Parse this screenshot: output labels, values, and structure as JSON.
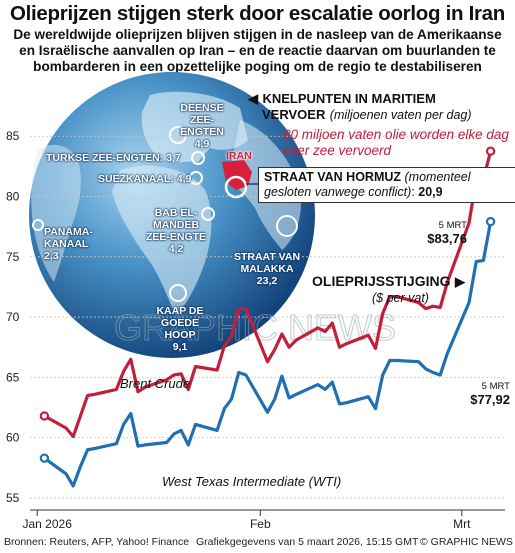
{
  "header": {
    "title": "Olieprijzen stijgen sterk door escalatie oorlog in Iran",
    "subtitle": "De wereldwijde olieprijzen blijven stijgen in de nasleep van de Amerikaanse en Israëlische aanvallen op Iran – en de reactie daarvan om buurlanden te bombarderen in een opzettelijke poging om de regio te destabiliseren"
  },
  "chokepoints": {
    "title": "KNELPUNTEN IN MARITIEM",
    "title2": "VERVOER",
    "unit": "(miljoenen vaten per dag)",
    "note": "80 miljoen vaten olie worden elke dag over zee vervoerd",
    "iran_label": "IRAN",
    "hormuz": {
      "name": "STRAAT VAN HORMUZ",
      "note": "(momenteel gesloten vanwege conflict)",
      "value": "20,9"
    },
    "points": [
      {
        "name": "DEENSE ZEE-ENGTEN",
        "value": "4,9"
      },
      {
        "name": "TURKSE ZEE-ENGTEN",
        "value": "3,7"
      },
      {
        "name": "SUEZKANAAL",
        "value": "4,9"
      },
      {
        "name": "BAB EL-MANDEB ZEE-ENGTE",
        "value": "4,2"
      },
      {
        "name": "PANAMA-KANAAL",
        "value": "2,3"
      },
      {
        "name": "STRAAT VAN MALAKKA",
        "value": "23,2"
      },
      {
        "name": "KAAP DE GOEDE HOOP",
        "value": "9,1"
      }
    ]
  },
  "chart_data": {
    "type": "line",
    "title": "OLIEPRIJSSTIJGING",
    "ylabel": "($ per vat)",
    "xlabel": "",
    "ylim": [
      54,
      89
    ],
    "yticks": [
      55,
      60,
      65,
      70,
      75,
      80,
      85
    ],
    "x_ticks": [
      {
        "label": "Jan 2026",
        "x": "2026-01-01"
      },
      {
        "label": "Feb",
        "x": "2026-02-01"
      },
      {
        "label": "Mrt",
        "x": "2026-03-01"
      }
    ],
    "x_range": [
      "2025-12-31",
      "2026-03-07"
    ],
    "series": [
      {
        "name": "Brent Crude",
        "color": "#c21f3a",
        "end_date_label": "5 MRT",
        "end_value_label": "$83,76",
        "points": [
          [
            "2026-01-02",
            61.8
          ],
          [
            "2026-01-05",
            60.8
          ],
          [
            "2026-01-06",
            60.1
          ],
          [
            "2026-01-07",
            61.8
          ],
          [
            "2026-01-08",
            63.5
          ],
          [
            "2026-01-09",
            63.6
          ],
          [
            "2026-01-12",
            64.0
          ],
          [
            "2026-01-13",
            65.5
          ],
          [
            "2026-01-14",
            66.5
          ],
          [
            "2026-01-15",
            63.8
          ],
          [
            "2026-01-16",
            64.2
          ],
          [
            "2026-01-19",
            64.8
          ],
          [
            "2026-01-20",
            65.2
          ],
          [
            "2026-01-21",
            65.3
          ],
          [
            "2026-01-22",
            64.0
          ],
          [
            "2026-01-23",
            65.9
          ],
          [
            "2026-01-26",
            65.6
          ],
          [
            "2026-01-27",
            67.6
          ],
          [
            "2026-01-28",
            68.4
          ],
          [
            "2026-01-29",
            70.7
          ],
          [
            "2026-01-30",
            70.7
          ],
          [
            "2026-02-02",
            66.3
          ],
          [
            "2026-02-03",
            67.3
          ],
          [
            "2026-02-04",
            68.6
          ],
          [
            "2026-02-05",
            67.5
          ],
          [
            "2026-02-06",
            68.1
          ],
          [
            "2026-02-09",
            69.1
          ],
          [
            "2026-02-10",
            68.8
          ],
          [
            "2026-02-11",
            69.5
          ],
          [
            "2026-02-12",
            67.5
          ],
          [
            "2026-02-13",
            67.8
          ],
          [
            "2026-02-16",
            68.5
          ],
          [
            "2026-02-17",
            67.4
          ],
          [
            "2026-02-18",
            70.3
          ],
          [
            "2026-02-19",
            71.7
          ],
          [
            "2026-02-20",
            71.7
          ],
          [
            "2026-02-23",
            71.2
          ],
          [
            "2026-02-24",
            70.7
          ],
          [
            "2026-02-25",
            70.9
          ],
          [
            "2026-02-26",
            70.8
          ],
          [
            "2026-02-27",
            72.9
          ],
          [
            "2026-03-02",
            77.8
          ],
          [
            "2026-03-03",
            81.4
          ],
          [
            "2026-03-04",
            81.4
          ],
          [
            "2026-03-05",
            83.76
          ]
        ]
      },
      {
        "name": "West Texas Intermediate (WTI)",
        "color": "#1f6fb2",
        "end_date_label": "5 MRT",
        "end_value_label": "$77,92",
        "points": [
          [
            "2026-01-02",
            58.3
          ],
          [
            "2026-01-05",
            57.0
          ],
          [
            "2026-01-06",
            56.0
          ],
          [
            "2026-01-07",
            57.6
          ],
          [
            "2026-01-08",
            59.0
          ],
          [
            "2026-01-09",
            59.1
          ],
          [
            "2026-01-12",
            59.5
          ],
          [
            "2026-01-13",
            61.1
          ],
          [
            "2026-01-14",
            62.0
          ],
          [
            "2026-01-15",
            59.3
          ],
          [
            "2026-01-16",
            59.4
          ],
          [
            "2026-01-19",
            59.6
          ],
          [
            "2026-01-20",
            60.3
          ],
          [
            "2026-01-21",
            60.6
          ],
          [
            "2026-01-22",
            59.4
          ],
          [
            "2026-01-23",
            61.1
          ],
          [
            "2026-01-26",
            60.6
          ],
          [
            "2026-01-27",
            62.4
          ],
          [
            "2026-01-28",
            63.2
          ],
          [
            "2026-01-29",
            65.4
          ],
          [
            "2026-01-30",
            65.2
          ],
          [
            "2026-02-02",
            62.1
          ],
          [
            "2026-02-03",
            63.2
          ],
          [
            "2026-02-04",
            65.1
          ],
          [
            "2026-02-05",
            63.3
          ],
          [
            "2026-02-06",
            63.6
          ],
          [
            "2026-02-09",
            64.4
          ],
          [
            "2026-02-10",
            64.0
          ],
          [
            "2026-02-11",
            64.6
          ],
          [
            "2026-02-12",
            62.8
          ],
          [
            "2026-02-13",
            62.9
          ],
          [
            "2026-02-16",
            63.4
          ],
          [
            "2026-02-17",
            62.4
          ],
          [
            "2026-02-18",
            65.2
          ],
          [
            "2026-02-19",
            66.4
          ],
          [
            "2026-02-20",
            66.4
          ],
          [
            "2026-02-23",
            66.3
          ],
          [
            "2026-02-24",
            65.7
          ],
          [
            "2026-02-25",
            65.4
          ],
          [
            "2026-02-26",
            65.2
          ],
          [
            "2026-02-27",
            67.0
          ],
          [
            "2026-03-02",
            71.2
          ],
          [
            "2026-03-03",
            74.6
          ],
          [
            "2026-03-04",
            74.7
          ],
          [
            "2026-03-05",
            77.92
          ]
        ]
      }
    ]
  },
  "watermark": "GRAPHIC NEWS",
  "footer": {
    "sources": "Bronnen: Reuters, AFP, Yahoo! Finance",
    "dated": "Grafiekgegevens van 5 maart 2026, 15:15 GMT",
    "credit": "© GRAPHIC NEWS"
  },
  "colors": {
    "brent": "#c21f3a",
    "wti": "#1f6fb2",
    "iran": "#d8203a"
  }
}
